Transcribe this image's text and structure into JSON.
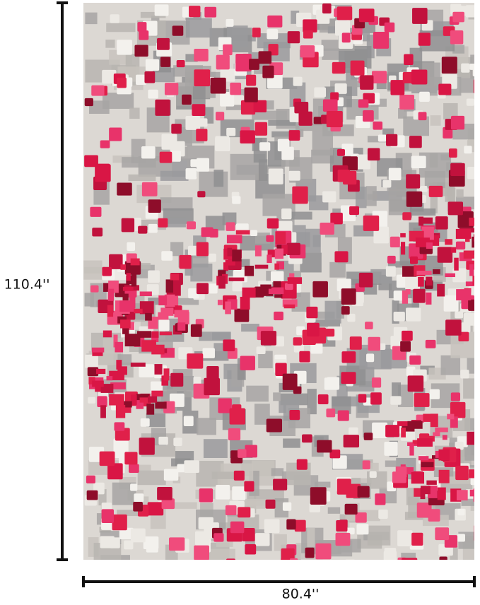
{
  "dimensions": {
    "height_label": "110.4''",
    "width_label": "80.4''"
  }
}
